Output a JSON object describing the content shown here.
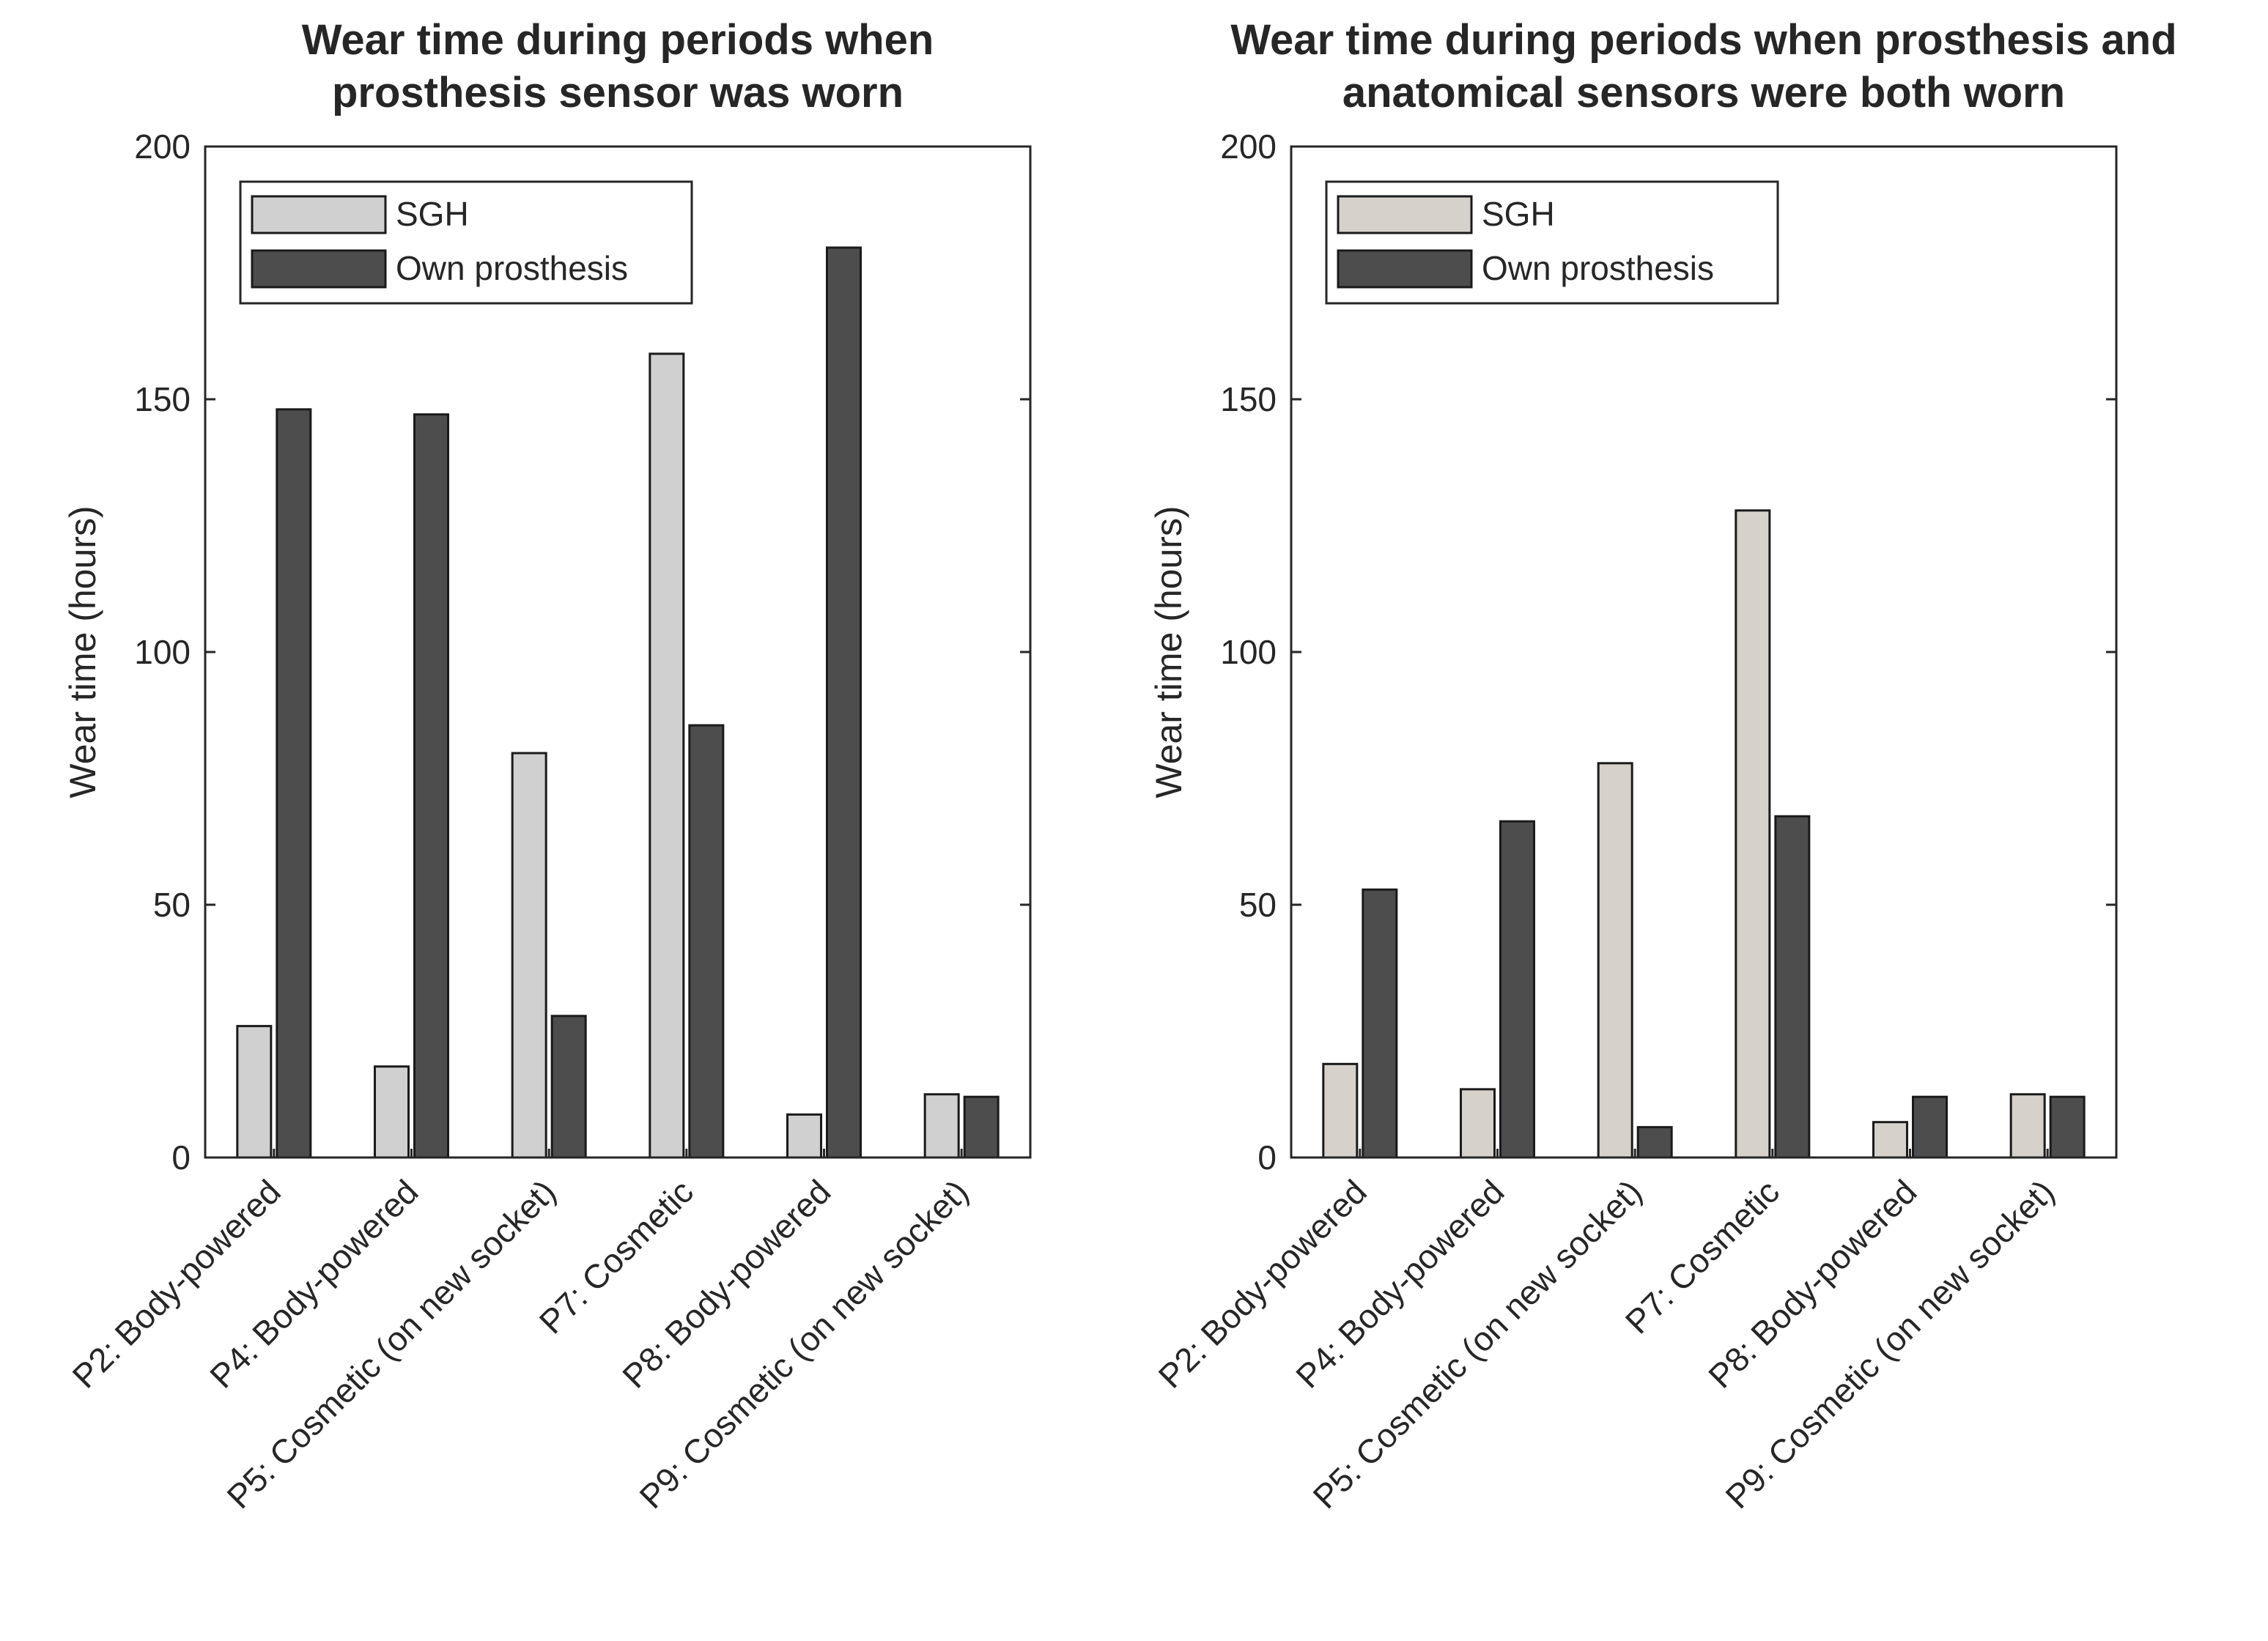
{
  "chart_data": [
    {
      "type": "bar",
      "title": [
        "Wear time during periods when",
        "prosthesis sensor was worn"
      ],
      "ylabel": "Wear time (hours)",
      "xlabel": "",
      "ylim": [
        0,
        200
      ],
      "yticks": [
        "0",
        "50",
        "100",
        "150",
        "200"
      ],
      "categories": [
        "P2: Body-powered",
        "P4: Body-powered",
        "P5: Cosmetic (on new socket)",
        "P7: Cosmetic",
        "P8: Body-powered",
        "P9: Cosmetic (on new socket)"
      ],
      "series": [
        {
          "name": "SGH",
          "color": "#d0d0d0",
          "values": [
            26,
            18,
            80,
            159,
            8.5,
            12.5
          ]
        },
        {
          "name": "Own prosthesis",
          "color": "#4d4d4d",
          "values": [
            148,
            147,
            28,
            85.5,
            180,
            12
          ]
        }
      ],
      "legend": "top-left",
      "grid": false
    },
    {
      "type": "bar",
      "title": [
        "Wear time during periods when prosthesis and",
        "anatomical sensors were both worn"
      ],
      "ylabel": "Wear time (hours)",
      "xlabel": "",
      "ylim": [
        0,
        200
      ],
      "yticks": [
        "0",
        "50",
        "100",
        "150",
        "200"
      ],
      "categories": [
        "P2: Body-powered",
        "P4: Body-powered",
        "P5: Cosmetic (on new socket)",
        "P7: Cosmetic",
        "P8: Body-powered",
        "P9: Cosmetic (on new socket)"
      ],
      "series": [
        {
          "name": "SGH",
          "color": "#d6d1ca",
          "values": [
            18.5,
            13.5,
            78,
            128,
            7,
            12.5
          ]
        },
        {
          "name": "Own prosthesis",
          "color": "#4d4d4d",
          "values": [
            53,
            66.5,
            6,
            67.5,
            12,
            12
          ]
        }
      ],
      "legend": "top-left",
      "grid": false
    }
  ]
}
